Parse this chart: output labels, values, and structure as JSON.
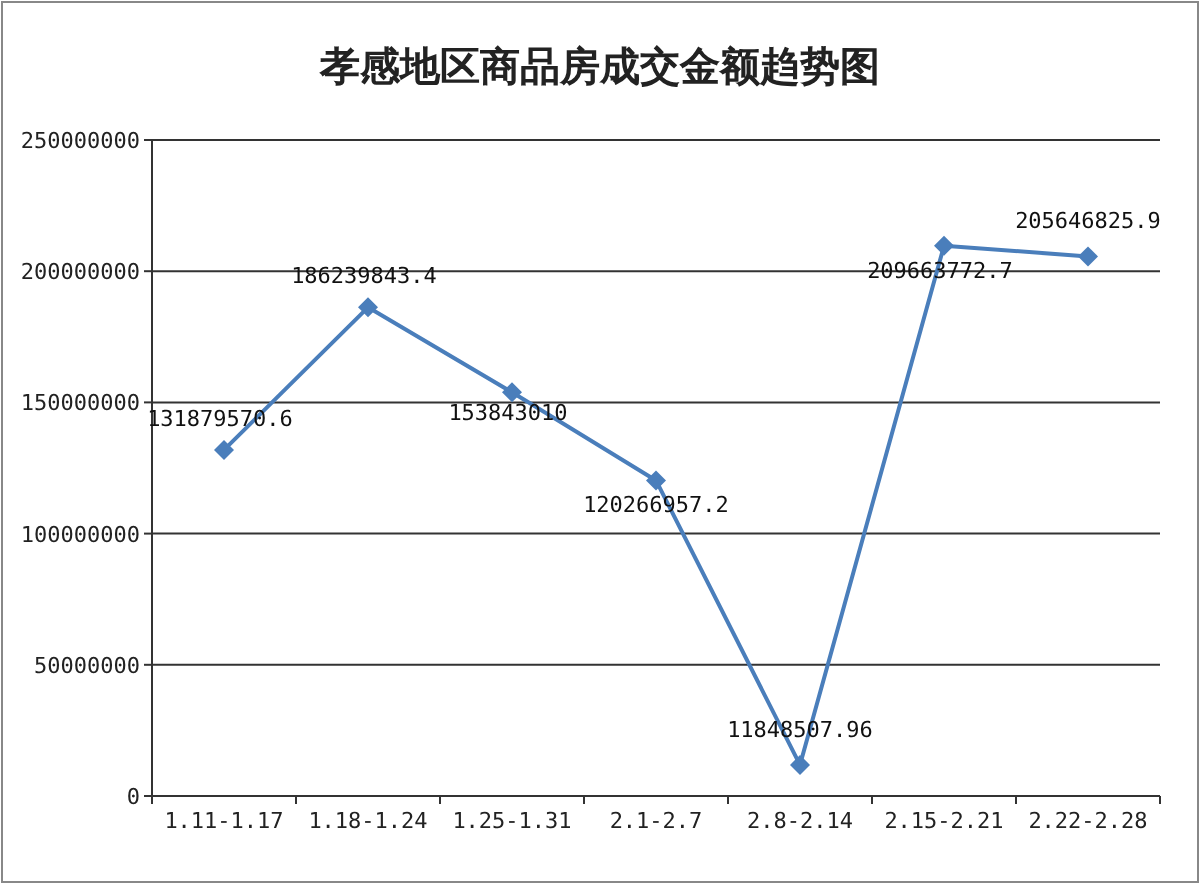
{
  "chart_data": {
    "type": "line",
    "title": "孝感地区商品房成交金额趋势图",
    "categories": [
      "1.11-1.17",
      "1.18-1.24",
      "1.25-1.31",
      "2.1-2.7",
      "2.8-2.14",
      "2.15-2.21",
      "2.22-2.28"
    ],
    "series": [
      {
        "color": "#4a7ebb",
        "values": [
          131879570.6,
          186239843.4,
          153843010,
          120266957.2,
          11848507.96,
          209663772.7,
          205646825.9
        ]
      }
    ],
    "ylim": [
      0,
      250000000
    ],
    "yticks": [
      0,
      50000000,
      100000000,
      150000000,
      200000000,
      250000000
    ],
    "grid": "y",
    "marker": "diamond",
    "data_labels": true
  }
}
